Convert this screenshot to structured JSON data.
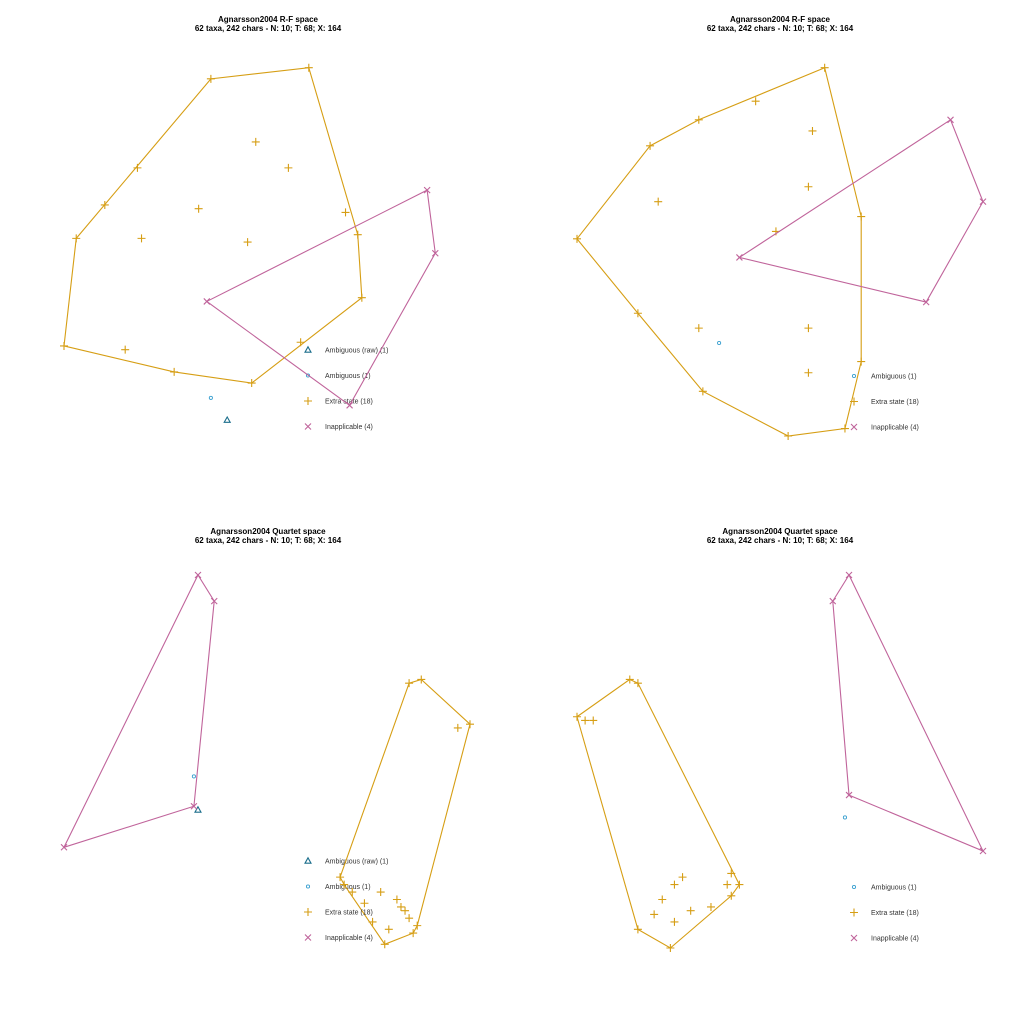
{
  "colors": {
    "ambiguous_raw": "#1b6e8c",
    "ambiguous": "#3aa0d0",
    "extra_state": "#d69e14",
    "inapplicable": "#c0649b"
  },
  "chart_data": [
    {
      "type": "scatter",
      "title": "Agnarsson2004 R-F space",
      "subtitle": "62 taxa, 242 chars - N: 10; T: 68; X: 164",
      "xlim": [
        0,
        1
      ],
      "ylim": [
        0,
        1
      ],
      "grid": false,
      "legend": "bottom-right",
      "series": [
        {
          "name": "Ambiguous (raw) (1)",
          "symbol": "triangle",
          "color_key": "ambiguous_raw",
          "points": [
            [
              0.4,
              0.04
            ]
          ],
          "hull": false
        },
        {
          "name": "Ambiguous (1)",
          "symbol": "circle",
          "color_key": "ambiguous",
          "points": [
            [
              0.36,
              0.1
            ]
          ],
          "hull": false
        },
        {
          "name": "Extra state (18)",
          "symbol": "plus",
          "color_key": "extra_state",
          "points": [
            [
              0.36,
              0.96
            ],
            [
              0.6,
              0.99
            ],
            [
              0.18,
              0.72
            ],
            [
              0.1,
              0.62
            ],
            [
              0.03,
              0.53
            ],
            [
              0.19,
              0.53
            ],
            [
              0.33,
              0.61
            ],
            [
              0.47,
              0.79
            ],
            [
              0.55,
              0.72
            ],
            [
              0.69,
              0.6
            ],
            [
              0.72,
              0.54
            ],
            [
              0.45,
              0.52
            ],
            [
              0.73,
              0.37
            ],
            [
              0.58,
              0.25
            ],
            [
              0.15,
              0.23
            ],
            [
              0.0,
              0.24
            ],
            [
              0.27,
              0.17
            ],
            [
              0.46,
              0.14
            ]
          ],
          "hull": true
        },
        {
          "name": "Inapplicable (4)",
          "symbol": "x",
          "color_key": "inapplicable",
          "points": [
            [
              0.35,
              0.36
            ],
            [
              0.89,
              0.66
            ],
            [
              0.91,
              0.49
            ],
            [
              0.7,
              0.08
            ]
          ],
          "hull": true
        }
      ]
    },
    {
      "type": "scatter",
      "title": "Agnarsson2004 R-F space",
      "subtitle": "62 taxa, 242 chars - N: 10; T: 68; X: 164",
      "xlim": [
        0,
        1
      ],
      "ylim": [
        0,
        1
      ],
      "grid": false,
      "legend": "bottom-right",
      "series": [
        {
          "name": "Ambiguous (1)",
          "symbol": "circle",
          "color_key": "ambiguous",
          "points": [
            [
              0.35,
              0.25
            ]
          ],
          "hull": false
        },
        {
          "name": "Extra state (18)",
          "symbol": "plus",
          "color_key": "extra_state",
          "points": [
            [
              0.61,
              0.99
            ],
            [
              0.44,
              0.9
            ],
            [
              0.3,
              0.85
            ],
            [
              0.18,
              0.78
            ],
            [
              0.0,
              0.53
            ],
            [
              0.15,
              0.33
            ],
            [
              0.3,
              0.29
            ],
            [
              0.2,
              0.63
            ],
            [
              0.58,
              0.82
            ],
            [
              0.57,
              0.67
            ],
            [
              0.49,
              0.55
            ],
            [
              0.7,
              0.59
            ],
            [
              0.57,
              0.29
            ],
            [
              0.57,
              0.17
            ],
            [
              0.31,
              0.12
            ],
            [
              0.52,
              0.0
            ],
            [
              0.66,
              0.02
            ],
            [
              0.7,
              0.2
            ]
          ],
          "hull": true
        },
        {
          "name": "Inapplicable (4)",
          "symbol": "x",
          "color_key": "inapplicable",
          "points": [
            [
              0.4,
              0.48
            ],
            [
              0.92,
              0.85
            ],
            [
              1.0,
              0.63
            ],
            [
              0.86,
              0.36
            ]
          ],
          "hull": true
        }
      ]
    },
    {
      "type": "scatter",
      "title": "Agnarsson2004 Quartet space",
      "subtitle": "62 taxa, 242 chars - N: 10; T: 68; X: 164",
      "xlim": [
        0,
        1
      ],
      "ylim": [
        0,
        1
      ],
      "grid": false,
      "legend": "bottom-right",
      "series": [
        {
          "name": "Ambiguous (raw) (1)",
          "symbol": "triangle",
          "color_key": "ambiguous_raw",
          "points": [
            [
              0.33,
              0.37
            ]
          ],
          "hull": false
        },
        {
          "name": "Ambiguous (1)",
          "symbol": "circle",
          "color_key": "ambiguous",
          "points": [
            [
              0.32,
              0.46
            ]
          ],
          "hull": false
        },
        {
          "name": "Extra state (18)",
          "symbol": "plus",
          "color_key": "extra_state",
          "points": [
            [
              0.85,
              0.71
            ],
            [
              0.88,
              0.72
            ],
            [
              0.97,
              0.59
            ],
            [
              1.0,
              0.6
            ],
            [
              0.68,
              0.19
            ],
            [
              0.69,
              0.17
            ],
            [
              0.71,
              0.15
            ],
            [
              0.78,
              0.15
            ],
            [
              0.82,
              0.13
            ],
            [
              0.85,
              0.08
            ],
            [
              0.84,
              0.1
            ],
            [
              0.83,
              0.11
            ],
            [
              0.74,
              0.12
            ],
            [
              0.76,
              0.07
            ],
            [
              0.8,
              0.05
            ],
            [
              0.79,
              0.01
            ],
            [
              0.86,
              0.04
            ],
            [
              0.87,
              0.06
            ]
          ],
          "hull": true
        },
        {
          "name": "Inapplicable (4)",
          "symbol": "x",
          "color_key": "inapplicable",
          "points": [
            [
              0.33,
              1.0
            ],
            [
              0.37,
              0.93
            ],
            [
              0.32,
              0.38
            ],
            [
              0.0,
              0.27
            ]
          ],
          "hull": true
        }
      ]
    },
    {
      "type": "scatter",
      "title": "Agnarsson2004 Quartet space",
      "subtitle": "62 taxa, 242 chars - N: 10; T: 68; X: 164",
      "xlim": [
        0,
        1
      ],
      "ylim": [
        0,
        1
      ],
      "grid": false,
      "legend": "bottom-right",
      "series": [
        {
          "name": "Ambiguous (1)",
          "symbol": "circle",
          "color_key": "ambiguous",
          "points": [
            [
              0.66,
              0.35
            ]
          ],
          "hull": false
        },
        {
          "name": "Extra state (18)",
          "symbol": "plus",
          "color_key": "extra_state",
          "points": [
            [
              0.13,
              0.72
            ],
            [
              0.15,
              0.71
            ],
            [
              0.0,
              0.62
            ],
            [
              0.02,
              0.61
            ],
            [
              0.04,
              0.61
            ],
            [
              0.38,
              0.2
            ],
            [
              0.37,
              0.17
            ],
            [
              0.26,
              0.19
            ],
            [
              0.24,
              0.17
            ],
            [
              0.21,
              0.13
            ],
            [
              0.28,
              0.1
            ],
            [
              0.19,
              0.09
            ],
            [
              0.24,
              0.07
            ],
            [
              0.15,
              0.05
            ],
            [
              0.23,
              0.0
            ],
            [
              0.33,
              0.11
            ],
            [
              0.38,
              0.14
            ],
            [
              0.4,
              0.17
            ]
          ],
          "hull": true
        },
        {
          "name": "Inapplicable (4)",
          "symbol": "x",
          "color_key": "inapplicable",
          "points": [
            [
              0.67,
              1.0
            ],
            [
              0.63,
              0.93
            ],
            [
              0.67,
              0.41
            ],
            [
              1.0,
              0.26
            ]
          ],
          "hull": true
        }
      ]
    }
  ]
}
